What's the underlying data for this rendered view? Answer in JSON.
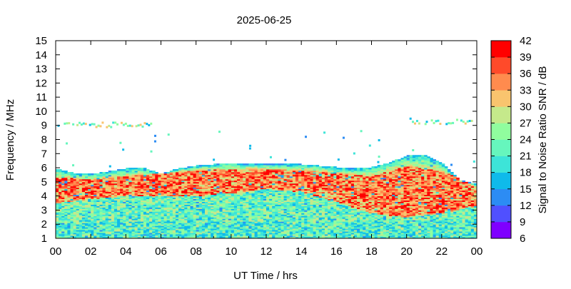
{
  "chart_data": {
    "type": "heatmap",
    "title": "2025-06-25",
    "xlabel": "UT Time / hrs",
    "ylabel": "Frequency / MHz",
    "colorbar_label": "Signal to Noise Ratio SNR / dB",
    "xlim": [
      0,
      24
    ],
    "ylim": [
      1,
      15
    ],
    "x_tick_labels": [
      "00",
      "02",
      "04",
      "06",
      "08",
      "10",
      "12",
      "14",
      "16",
      "18",
      "20",
      "22",
      "00"
    ],
    "y_tick_labels": [
      "1",
      "2",
      "3",
      "4",
      "5",
      "6",
      "7",
      "8",
      "9",
      "10",
      "11",
      "12",
      "13",
      "14",
      "15"
    ],
    "colorbar_ticks": [
      "42",
      "39",
      "36",
      "33",
      "30",
      "27",
      "24",
      "21",
      "18",
      "15",
      "12",
      "9",
      "6"
    ],
    "color_scale": [
      "#7f00ff",
      "#5050ff",
      "#2c8cf4",
      "#0fbaea",
      "#3de4d8",
      "#66f6bd",
      "#90fd9e",
      "#c5e98b",
      "#f9c46e",
      "#ff8b4e",
      "#ff4a2a",
      "#ff0000"
    ],
    "upper_envelope_mhz": {
      "x": [
        0,
        1,
        2,
        3,
        4,
        5,
        6,
        7,
        8,
        9,
        10,
        11,
        12,
        13,
        14,
        15,
        16,
        17,
        18,
        19,
        20,
        21,
        22,
        23,
        24
      ],
      "y": [
        5.9,
        5.6,
        5.5,
        5.7,
        5.9,
        6.0,
        5.5,
        5.9,
        6.1,
        6.2,
        6.3,
        6.2,
        6.2,
        6.2,
        6.2,
        6.1,
        6.0,
        5.9,
        6.0,
        6.3,
        6.8,
        6.9,
        6.3,
        5.1,
        4.8
      ]
    },
    "high_snr_core_mhz": {
      "x": [
        0,
        2,
        4,
        6,
        8,
        10,
        12,
        14,
        16,
        18,
        20,
        22,
        24
      ],
      "low": [
        3.5,
        3.8,
        4.0,
        4.0,
        4.0,
        4.2,
        4.5,
        4.3,
        3.6,
        2.8,
        2.5,
        2.8,
        3.3
      ],
      "high": [
        5.3,
        5.2,
        5.4,
        5.6,
        5.8,
        5.9,
        5.9,
        5.8,
        5.6,
        5.4,
        6.1,
        5.8,
        4.6
      ]
    },
    "sporadic_layer": {
      "segments": [
        {
          "x_start": 0.1,
          "x_end": 5.4,
          "freq_mhz": 9.1
        },
        {
          "x_start": 20.3,
          "x_end": 24.0,
          "freq_mhz": 9.3
        }
      ]
    }
  }
}
